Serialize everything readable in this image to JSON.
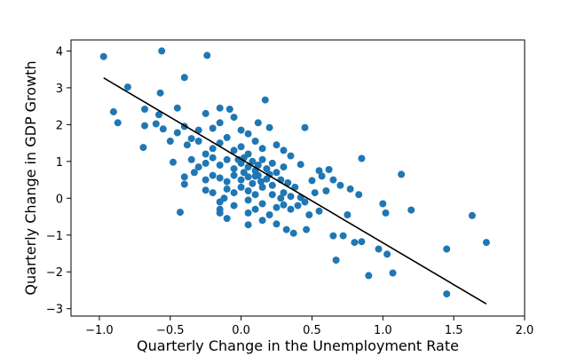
{
  "chart_data": {
    "type": "scatter",
    "xlabel": "Quarterly Change in the Unemployment Rate",
    "ylabel": "Quarterly Change in GDP Growth",
    "xlim": [
      -1.2,
      2.0
    ],
    "ylim": [
      -3.2,
      4.3
    ],
    "xticks": [
      -1.0,
      -0.5,
      0.0,
      0.5,
      1.0,
      1.5,
      2.0
    ],
    "yticks": [
      -3,
      -2,
      -1,
      0,
      1,
      2,
      3,
      4
    ],
    "xtick_labels": [
      "−1.0",
      "−0.5",
      "0.0",
      "0.5",
      "1.0",
      "1.5",
      "2.0"
    ],
    "ytick_labels": [
      "−3",
      "−2",
      "−1",
      "0",
      "1",
      "2",
      "3",
      "4"
    ],
    "grid": false,
    "point_color": "#1f77b4",
    "line_color": "#000000",
    "fit_line": {
      "x": [
        -0.97,
        1.73
      ],
      "y": [
        3.27,
        -2.87
      ]
    },
    "points": [
      [
        -0.97,
        3.85
      ],
      [
        -0.56,
        4.0
      ],
      [
        -0.24,
        3.88
      ],
      [
        -0.4,
        3.28
      ],
      [
        -0.8,
        3.02
      ],
      [
        -0.57,
        2.86
      ],
      [
        -0.9,
        2.35
      ],
      [
        -0.87,
        2.05
      ],
      [
        -0.68,
        2.42
      ],
      [
        -0.58,
        2.27
      ],
      [
        -0.45,
        2.45
      ],
      [
        -0.25,
        2.3
      ],
      [
        -0.15,
        2.45
      ],
      [
        -0.08,
        2.42
      ],
      [
        0.17,
        2.67
      ],
      [
        -0.68,
        1.97
      ],
      [
        -0.6,
        2.02
      ],
      [
        -0.55,
        1.88
      ],
      [
        -0.45,
        1.78
      ],
      [
        -0.4,
        1.95
      ],
      [
        -0.35,
        1.62
      ],
      [
        -0.3,
        1.85
      ],
      [
        -0.2,
        1.9
      ],
      [
        -0.15,
        2.05
      ],
      [
        -0.05,
        2.2
      ],
      [
        0.0,
        1.85
      ],
      [
        0.05,
        1.75
      ],
      [
        0.12,
        2.05
      ],
      [
        0.2,
        1.92
      ],
      [
        0.45,
        1.92
      ],
      [
        -0.69,
        1.38
      ],
      [
        -0.5,
        1.55
      ],
      [
        -0.38,
        1.45
      ],
      [
        -0.3,
        1.55
      ],
      [
        -0.25,
        1.2
      ],
      [
        -0.2,
        1.35
      ],
      [
        -0.15,
        1.5
      ],
      [
        -0.1,
        1.65
      ],
      [
        -0.05,
        1.3
      ],
      [
        0.0,
        1.4
      ],
      [
        0.05,
        1.2
      ],
      [
        0.1,
        1.55
      ],
      [
        0.15,
        1.35
      ],
      [
        0.25,
        1.45
      ],
      [
        0.3,
        1.3
      ],
      [
        -0.48,
        0.98
      ],
      [
        -0.35,
        1.05
      ],
      [
        -0.3,
        0.85
      ],
      [
        -0.25,
        0.95
      ],
      [
        -0.2,
        1.1
      ],
      [
        -0.15,
        0.9
      ],
      [
        -0.1,
        1.05
      ],
      [
        -0.05,
        0.8
      ],
      [
        0.0,
        0.95
      ],
      [
        0.02,
        1.1
      ],
      [
        0.05,
        0.85
      ],
      [
        0.08,
        1.0
      ],
      [
        0.1,
        0.75
      ],
      [
        0.12,
        0.9
      ],
      [
        0.15,
        1.05
      ],
      [
        0.18,
        0.8
      ],
      [
        0.2,
        0.65
      ],
      [
        0.22,
        0.95
      ],
      [
        0.25,
        0.7
      ],
      [
        0.3,
        0.85
      ],
      [
        0.35,
        1.15
      ],
      [
        0.42,
        0.92
      ],
      [
        0.55,
        0.75
      ],
      [
        0.62,
        0.78
      ],
      [
        0.85,
        1.08
      ],
      [
        -0.4,
        0.58
      ],
      [
        -0.33,
        0.7
      ],
      [
        -0.25,
        0.5
      ],
      [
        -0.2,
        0.62
      ],
      [
        -0.15,
        0.55
      ],
      [
        -0.1,
        0.45
      ],
      [
        -0.05,
        0.62
      ],
      [
        0.0,
        0.5
      ],
      [
        0.02,
        0.7
      ],
      [
        0.05,
        0.58
      ],
      [
        0.08,
        0.4
      ],
      [
        0.1,
        0.6
      ],
      [
        0.14,
        0.45
      ],
      [
        0.18,
        0.52
      ],
      [
        0.22,
        0.35
      ],
      [
        0.28,
        0.5
      ],
      [
        0.33,
        0.42
      ],
      [
        0.38,
        0.3
      ],
      [
        0.5,
        0.48
      ],
      [
        0.57,
        0.6
      ],
      [
        0.65,
        0.5
      ],
      [
        0.7,
        0.35
      ],
      [
        0.77,
        0.25
      ],
      [
        0.83,
        0.1
      ],
      [
        1.13,
        0.65
      ],
      [
        -0.4,
        0.38
      ],
      [
        -0.25,
        0.22
      ],
      [
        -0.2,
        0.15
      ],
      [
        -0.1,
        0.25
      ],
      [
        -0.05,
        0.15
      ],
      [
        0.0,
        0.3
      ],
      [
        0.05,
        0.2
      ],
      [
        0.1,
        0.1
      ],
      [
        0.15,
        0.3
      ],
      [
        0.22,
        0.1
      ],
      [
        0.3,
        0.15
      ],
      [
        0.35,
        0.05
      ],
      [
        0.42,
        0.02
      ],
      [
        0.52,
        0.15
      ],
      [
        0.6,
        0.2
      ],
      [
        -0.43,
        -0.38
      ],
      [
        -0.15,
        -0.4
      ],
      [
        -0.15,
        -0.1
      ],
      [
        -0.05,
        -0.2
      ],
      [
        0.05,
        -0.05
      ],
      [
        0.1,
        -0.3
      ],
      [
        0.15,
        -0.15
      ],
      [
        0.25,
        -0.25
      ],
      [
        0.3,
        -0.18
      ],
      [
        0.35,
        -0.3
      ],
      [
        0.4,
        -0.2
      ],
      [
        0.45,
        -0.1
      ],
      [
        0.55,
        -0.35
      ],
      [
        0.75,
        -0.45
      ],
      [
        1.0,
        -0.15
      ],
      [
        1.2,
        -0.32
      ],
      [
        1.02,
        -0.4
      ],
      [
        -0.15,
        -0.3
      ],
      [
        0.2,
        -0.45
      ],
      [
        0.05,
        -0.4
      ],
      [
        -0.1,
        -0.55
      ],
      [
        0.05,
        -0.72
      ],
      [
        0.15,
        -0.6
      ],
      [
        0.25,
        -0.7
      ],
      [
        0.32,
        -0.85
      ],
      [
        0.48,
        -0.45
      ],
      [
        0.65,
        -1.02
      ],
      [
        0.72,
        -1.02
      ],
      [
        0.8,
        -1.2
      ],
      [
        0.37,
        -0.95
      ],
      [
        0.46,
        -0.85
      ],
      [
        0.85,
        -1.18
      ],
      [
        0.67,
        -1.68
      ],
      [
        0.97,
        -1.38
      ],
      [
        1.03,
        -1.52
      ],
      [
        0.9,
        -2.1
      ],
      [
        1.07,
        -2.03
      ],
      [
        1.45,
        -1.38
      ],
      [
        1.63,
        -0.47
      ],
      [
        1.73,
        -1.2
      ],
      [
        1.45,
        -2.6
      ],
      [
        -0.12,
        0.0
      ],
      [
        0.28,
        0.0
      ],
      [
        0.12,
        0.62
      ],
      [
        -0.02,
        1.05
      ]
    ]
  }
}
